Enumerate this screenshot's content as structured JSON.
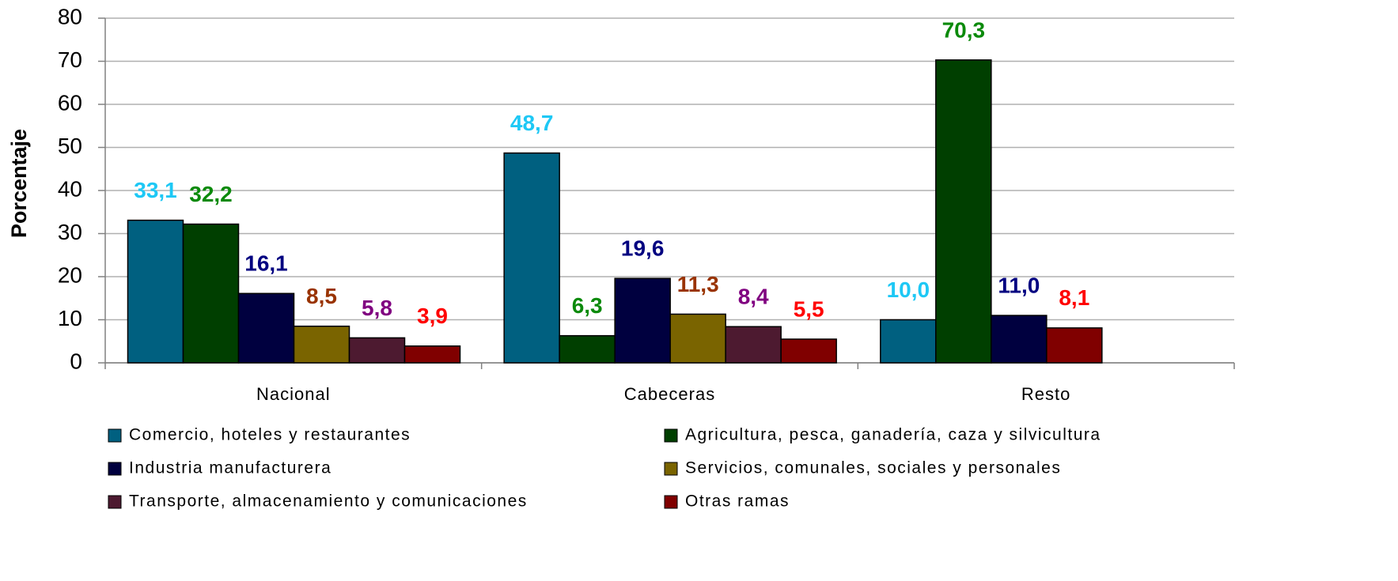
{
  "chart_data": {
    "type": "bar",
    "y_label": "Porcentaje",
    "categories": [
      "Nacional",
      "Cabeceras",
      "Resto"
    ],
    "series": [
      {
        "name": "Comercio, hoteles y restaurantes",
        "color": "#006080",
        "label_color": "#1ec8f5",
        "values": [
          33.1,
          48.7,
          10.0
        ],
        "value_labels": [
          "33,1",
          "48,7",
          "10,0"
        ]
      },
      {
        "name": "Agricultura, pesca, ganadería, caza y silvicultura",
        "color": "#003f00",
        "label_color": "#0b8a0b",
        "values": [
          32.2,
          6.3,
          70.3
        ],
        "value_labels": [
          "32,2",
          "6,3",
          "70,3"
        ]
      },
      {
        "name": "Industria manufacturera",
        "color": "#00003f",
        "label_color": "#000080",
        "values": [
          16.1,
          19.6,
          11.0
        ],
        "value_labels": [
          "16,1",
          "19,6",
          "11,0"
        ]
      },
      {
        "name": "Servicios, comunales, sociales y personales",
        "color": "#7a6400",
        "label_color": "#993300",
        "values": [
          8.5,
          11.3,
          null
        ],
        "value_labels": [
          "8,5",
          "11,3",
          null
        ]
      },
      {
        "name": "Transporte, almacenamiento y comunicaciones",
        "color": "#4d1a30",
        "label_color": "#800080",
        "values": [
          5.8,
          8.4,
          null
        ],
        "value_labels": [
          "5,8",
          "8,4",
          null
        ]
      },
      {
        "name": "Otras ramas",
        "color": "#800000",
        "label_color": "#ff0000",
        "values": [
          3.9,
          5.5,
          8.1
        ],
        "value_labels": [
          "3,9",
          "5,5",
          "8,1"
        ]
      }
    ],
    "ylim": [
      0,
      80
    ],
    "yticks": [
      0,
      10,
      20,
      30,
      40,
      50,
      60,
      70,
      80
    ],
    "grid": true
  }
}
